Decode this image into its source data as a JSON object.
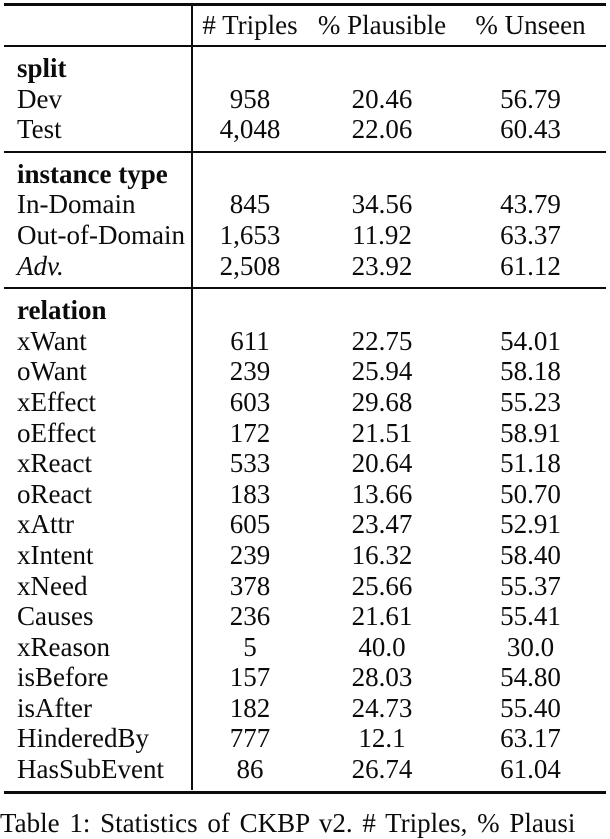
{
  "colors": {
    "text": "#0b0b0b",
    "background": "#ffffff"
  },
  "table": {
    "headers": {
      "triples": "# Triples",
      "plausible": "% Plausible",
      "unseen": "% Unseen"
    },
    "sections": [
      {
        "name": "split",
        "rows": [
          {
            "label": "Dev",
            "triples": "958",
            "plausible": "20.46",
            "unseen": "56.79"
          },
          {
            "label": "Test",
            "triples": "4,048",
            "plausible": "22.06",
            "unseen": "60.43"
          }
        ]
      },
      {
        "name": "instance type",
        "rows": [
          {
            "label": "In-Domain",
            "triples": "845",
            "plausible": "34.56",
            "unseen": "43.79"
          },
          {
            "label": "Out-of-Domain",
            "triples": "1,653",
            "plausible": "11.92",
            "unseen": "63.37"
          },
          {
            "label": "Adv.",
            "triples": "2,508",
            "plausible": "23.92",
            "unseen": "61.12"
          }
        ]
      },
      {
        "name": "relation",
        "rows": [
          {
            "label": "xWant",
            "triples": "611",
            "plausible": "22.75",
            "unseen": "54.01"
          },
          {
            "label": "oWant",
            "triples": "239",
            "plausible": "25.94",
            "unseen": "58.18"
          },
          {
            "label": "xEffect",
            "triples": "603",
            "plausible": "29.68",
            "unseen": "55.23"
          },
          {
            "label": "oEffect",
            "triples": "172",
            "plausible": "21.51",
            "unseen": "58.91"
          },
          {
            "label": "xReact",
            "triples": "533",
            "plausible": "20.64",
            "unseen": "51.18"
          },
          {
            "label": "oReact",
            "triples": "183",
            "plausible": "13.66",
            "unseen": "50.70"
          },
          {
            "label": "xAttr",
            "triples": "605",
            "plausible": "23.47",
            "unseen": "52.91"
          },
          {
            "label": "xIntent",
            "triples": "239",
            "plausible": "16.32",
            "unseen": "58.40"
          },
          {
            "label": "xNeed",
            "triples": "378",
            "plausible": "25.66",
            "unseen": "55.37"
          },
          {
            "label": "Causes",
            "triples": "236",
            "plausible": "21.61",
            "unseen": "55.41"
          },
          {
            "label": "xReason",
            "triples": "5",
            "plausible": "40.0",
            "unseen": "30.0"
          },
          {
            "label": "isBefore",
            "triples": "157",
            "plausible": "28.03",
            "unseen": "54.80"
          },
          {
            "label": "isAfter",
            "triples": "182",
            "plausible": "24.73",
            "unseen": "55.40"
          },
          {
            "label": "HinderedBy",
            "triples": "777",
            "plausible": "12.1",
            "unseen": "63.17"
          },
          {
            "label": "HasSubEvent",
            "triples": "86",
            "plausible": "26.74",
            "unseen": "61.04"
          }
        ]
      }
    ]
  },
  "caption": "Table 1: Statistics of CKBP v2. # Triples, % Plausi"
}
